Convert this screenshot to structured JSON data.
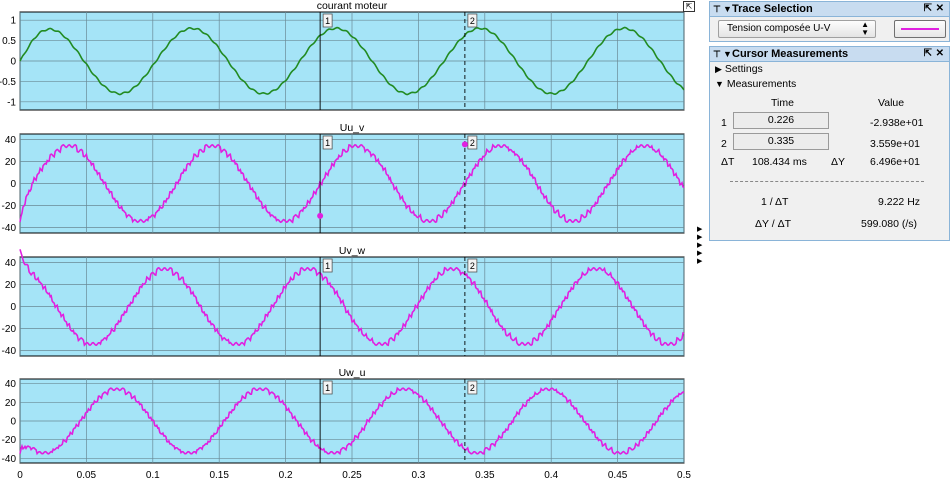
{
  "scope": {
    "x_ticks": [
      "0",
      "0.05",
      "0.1",
      "0.15",
      "0.2",
      "0.25",
      "0.3",
      "0.35",
      "0.4",
      "0.45",
      "0.5"
    ],
    "cursor1_label": "1",
    "cursor2_label": "2",
    "cursor1_time": 0.226,
    "cursor2_time": 0.335,
    "plot_bg": "#a5e4f7",
    "axes": [
      {
        "title": "courant moteur",
        "yticks": [
          "1",
          "0.5",
          "0",
          "-0.5",
          "-1"
        ],
        "color": "#228b22",
        "amp": 0.8,
        "phase": 0.35
      },
      {
        "title": "Uu_v",
        "yticks": [
          "40",
          "20",
          "0",
          "-20",
          "-40"
        ],
        "color": "#e020e0",
        "amp": 34,
        "phase": -0.55
      },
      {
        "title": "Uv_w",
        "yticks": [
          "40",
          "20",
          "0",
          "-20",
          "-40"
        ],
        "color": "#e020e0",
        "amp": 34,
        "phase": 1.55
      },
      {
        "title": "Uw_u",
        "yticks": [
          "40",
          "20",
          "0",
          "-20",
          "-40"
        ],
        "color": "#e020e0",
        "amp": 34,
        "phase": -2.64
      }
    ]
  },
  "chart_data": {
    "type": "line",
    "x_range": [
      0,
      0.5
    ],
    "frequency_hz": 9.222,
    "series": [
      {
        "name": "courant moteur",
        "amplitude": 0.8,
        "ylim": [
          -1.2,
          1.2
        ]
      },
      {
        "name": "Uu_v",
        "amplitude": 34,
        "ylim": [
          -45,
          45
        ]
      },
      {
        "name": "Uv_w",
        "amplitude": 34,
        "ylim": [
          -45,
          45
        ]
      },
      {
        "name": "Uw_u",
        "amplitude": 34,
        "ylim": [
          -45,
          45
        ]
      }
    ]
  },
  "trace_selection": {
    "title": "Trace Selection",
    "selected": "Tension composée U-V",
    "line_color": "#e020e0"
  },
  "cursor_measurements": {
    "title": "Cursor Measurements",
    "settings_label": "Settings",
    "measurements_label": "Measurements",
    "col_time": "Time",
    "col_value": "Value",
    "row1_label": "1",
    "row1_time": "0.226",
    "row1_value": "-2.938e+01",
    "row2_label": "2",
    "row2_time": "0.335",
    "row2_value": "3.559e+01",
    "dt_label": "ΔT",
    "dt_value": "108.434 ms",
    "dy_label": "ΔY",
    "dy_value": "6.496e+01",
    "inv_dt_label": "1 / ΔT",
    "inv_dt_value": "9.222 Hz",
    "dy_dt_label": "ΔY / ΔT",
    "dy_dt_value": "599.080 (/s)"
  }
}
